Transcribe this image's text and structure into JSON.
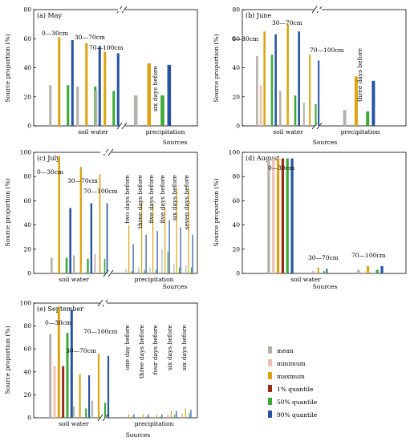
{
  "chart_data": [
    {
      "type": "bar",
      "title": "(a) May",
      "ylabel": "Source proportion (%)",
      "xlabel": "Sources",
      "ylim": [
        0,
        80
      ],
      "yticks": [
        0,
        20,
        40,
        60,
        80
      ],
      "axis_break": true,
      "group_labels": [
        "soil water",
        "precipitation"
      ],
      "series": [
        {
          "name": "mean",
          "color": "#b4b1a8"
        },
        {
          "name": "minimum",
          "color": "#efbfb1"
        },
        {
          "name": "maxmum",
          "color": "#dba310"
        },
        {
          "name": "1% quantile",
          "color": "#9f2b16"
        },
        {
          "name": "50% quantile",
          "color": "#3aa935"
        },
        {
          "name": "90% quantile",
          "color": "#2553a5"
        }
      ],
      "clusters": [
        {
          "label": "0~30cm",
          "group": "soil water",
          "values": [
            28,
            0,
            61,
            0,
            28,
            59
          ]
        },
        {
          "label": "30~70cm",
          "group": "soil water",
          "values": [
            27,
            0,
            57,
            0,
            27,
            55
          ]
        },
        {
          "label": "70~100cm",
          "group": "soil water",
          "values": [
            24,
            0,
            51,
            0,
            24,
            50
          ]
        },
        {
          "label": "six days before",
          "group": "precipitation",
          "values": [
            21,
            0,
            43,
            0,
            21,
            42
          ]
        }
      ]
    },
    {
      "type": "bar",
      "title": "(b) June",
      "ylabel": "Source proportion (%)",
      "xlabel": "Sources",
      "ylim": [
        0,
        80
      ],
      "yticks": [
        0,
        20,
        40,
        60,
        80
      ],
      "axis_break": true,
      "group_labels": [
        "soil water",
        "precipitation"
      ],
      "clusters": [
        {
          "label": "0~30cm",
          "group": "soil water",
          "values": [
            48,
            28,
            65,
            0,
            49,
            63
          ]
        },
        {
          "label": "30~70cm",
          "group": "soil water",
          "values": [
            24,
            0,
            70,
            0,
            21,
            65
          ]
        },
        {
          "label": "70~100cm",
          "group": "soil water",
          "values": [
            16,
            0,
            49,
            0,
            15,
            45
          ]
        },
        {
          "label": "three days before",
          "group": "precipitation",
          "values": [
            11,
            0,
            34,
            0,
            10,
            31
          ]
        }
      ]
    },
    {
      "type": "bar",
      "title": "(c) July",
      "ylabel": "Source proportion (%)",
      "xlabel": "Sources",
      "ylim": [
        0,
        100
      ],
      "yticks": [
        0,
        20,
        40,
        60,
        80,
        100
      ],
      "axis_break": true,
      "group_labels": [
        "soil water",
        "precipitation"
      ],
      "clusters": [
        {
          "label": "0~30cm",
          "group": "soil water",
          "values": [
            13,
            0,
            97,
            0,
            13,
            54
          ]
        },
        {
          "label": "30~70cm",
          "group": "soil water",
          "values": [
            15,
            0,
            88,
            0,
            12,
            58
          ]
        },
        {
          "label": "70~100cm",
          "group": "soil water",
          "values": [
            16,
            0,
            82,
            0,
            12,
            58
          ]
        },
        {
          "label": "two days before",
          "group": "precipitation",
          "values": [
            4,
            0,
            40,
            0,
            2,
            24
          ]
        },
        {
          "label": "three days before",
          "group": "precipitation",
          "values": [
            5,
            0,
            60,
            0,
            3,
            32
          ]
        },
        {
          "label": "five days before",
          "group": "precipitation",
          "values": [
            5,
            0,
            57,
            0,
            3,
            35
          ]
        },
        {
          "label": "five days before",
          "group": "precipitation",
          "values": [
            20,
            0,
            55,
            0,
            18,
            44
          ]
        },
        {
          "label": "six days before",
          "group": "precipitation",
          "values": [
            8,
            0,
            70,
            0,
            5,
            38
          ]
        },
        {
          "label": "seven days before",
          "group": "precipitation",
          "values": [
            7,
            0,
            70,
            0,
            5,
            32
          ]
        }
      ]
    },
    {
      "type": "bar",
      "title": "(d) August",
      "ylabel": "Source proportion (%)",
      "xlabel": "Sources",
      "ylim": [
        0,
        100
      ],
      "yticks": [
        0,
        20,
        40,
        60,
        80,
        100
      ],
      "axis_break": false,
      "group_labels": [
        "soil water"
      ],
      "clusters": [
        {
          "label": "0~30cm",
          "group": "soil water",
          "values": [
            95,
            95,
            95,
            95,
            95,
            95
          ]
        },
        {
          "label": "30~70cm",
          "group": "soil water",
          "values": [
            2,
            1,
            5,
            0,
            2,
            4
          ]
        },
        {
          "label": "70~100cm",
          "group": "soil water",
          "values": [
            3,
            1,
            6,
            0,
            3,
            6
          ]
        }
      ]
    },
    {
      "type": "bar",
      "title": "(e) September",
      "ylabel": "Source proportion (%)",
      "xlabel": "Sources",
      "ylim": [
        0,
        100
      ],
      "yticks": [
        0,
        20,
        40,
        60,
        80,
        100
      ],
      "axis_break": true,
      "group_labels": [
        "soil water",
        "precipitation"
      ],
      "clusters": [
        {
          "label": "0~30cm",
          "group": "soil water",
          "values": [
            73,
            45,
            97,
            45,
            74,
            94
          ]
        },
        {
          "label": "30~70cm",
          "group": "soil water",
          "values": [
            10,
            0,
            38,
            0,
            8,
            37
          ]
        },
        {
          "label": "70~100cm",
          "group": "soil water",
          "values": [
            15,
            0,
            56,
            0,
            13,
            54
          ]
        },
        {
          "label": "one day before",
          "group": "precipitation",
          "values": [
            1,
            0,
            3,
            0,
            1,
            3
          ]
        },
        {
          "label": "three days before",
          "group": "precipitation",
          "values": [
            1,
            0,
            3,
            0,
            1,
            3
          ]
        },
        {
          "label": "four days before",
          "group": "precipitation",
          "values": [
            1,
            0,
            3,
            0,
            1,
            3
          ]
        },
        {
          "label": "six days before",
          "group": "precipitation",
          "values": [
            3,
            0,
            6,
            0,
            3,
            6
          ]
        },
        {
          "label": "six days before",
          "group": "precipitation",
          "values": [
            4,
            0,
            8,
            0,
            4,
            7
          ]
        }
      ]
    }
  ],
  "legend": {
    "entries": [
      "mean",
      "minimum",
      "maxmum",
      "1% quantile",
      "50% quantile",
      "90% quantile"
    ],
    "colors": [
      "#b4b1a8",
      "#efbfb1",
      "#dba310",
      "#9f2b16",
      "#3aa935",
      "#2553a5"
    ]
  }
}
